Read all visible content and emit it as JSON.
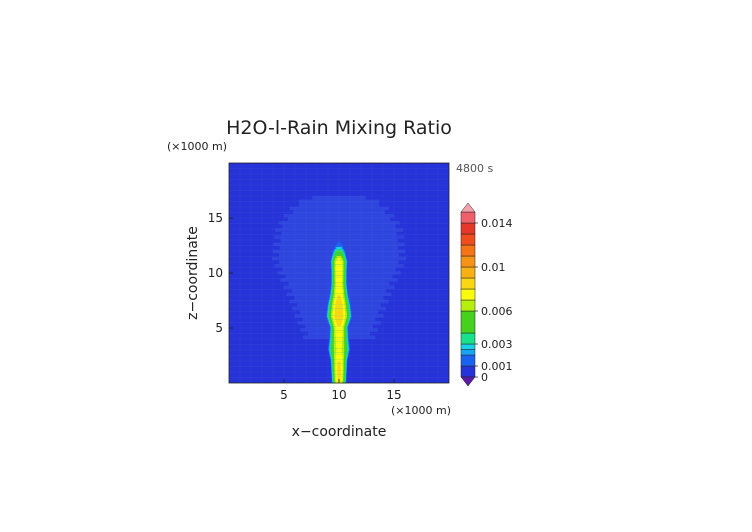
{
  "chart_data": {
    "type": "heatmap",
    "title": "H2O-l-Rain Mixing Ratio",
    "time_label": "4800 s",
    "xlabel": "x−coordinate",
    "ylabel": "z−coordinate",
    "x_unit": "(×1000 m)",
    "y_unit": "(×1000 m)",
    "xlim": [
      0,
      20
    ],
    "ylim": [
      0,
      20
    ],
    "x_ticks": [
      {
        "value": 5,
        "label": "5"
      },
      {
        "value": 10,
        "label": "10"
      },
      {
        "value": 15,
        "label": "15"
      }
    ],
    "y_ticks": [
      {
        "value": 5,
        "label": "5"
      },
      {
        "value": 10,
        "label": "10"
      },
      {
        "value": 15,
        "label": "15"
      }
    ],
    "colorbar": {
      "vmin": 0,
      "vmax": 0.015,
      "ticks": [
        {
          "value": 0,
          "label": "0"
        },
        {
          "value": 0.001,
          "label": "0.001"
        },
        {
          "value": 0.003,
          "label": "0.003"
        },
        {
          "value": 0.006,
          "label": "0.006"
        },
        {
          "value": 0.01,
          "label": "0.01"
        },
        {
          "value": 0.014,
          "label": "0.014"
        }
      ],
      "levels": [
        {
          "lo": 0.0,
          "hi": 0.001,
          "color": "#2533d8"
        },
        {
          "lo": 0.001,
          "hi": 0.002,
          "color": "#1a63f0"
        },
        {
          "lo": 0.002,
          "hi": 0.0025,
          "color": "#1aa4f5"
        },
        {
          "lo": 0.0025,
          "hi": 0.003,
          "color": "#19d2e6"
        },
        {
          "lo": 0.003,
          "hi": 0.004,
          "color": "#19e08a"
        },
        {
          "lo": 0.004,
          "hi": 0.006,
          "color": "#44d21c"
        },
        {
          "lo": 0.006,
          "hi": 0.007,
          "color": "#b6ef0e"
        },
        {
          "lo": 0.007,
          "hi": 0.008,
          "color": "#fbfb10"
        },
        {
          "lo": 0.008,
          "hi": 0.009,
          "color": "#fbd612"
        },
        {
          "lo": 0.009,
          "hi": 0.01,
          "color": "#f8b114"
        },
        {
          "lo": 0.01,
          "hi": 0.011,
          "color": "#f69316"
        },
        {
          "lo": 0.011,
          "hi": 0.012,
          "color": "#f57418"
        },
        {
          "lo": 0.012,
          "hi": 0.013,
          "color": "#f04c1c"
        },
        {
          "lo": 0.013,
          "hi": 0.014,
          "color": "#e5372a"
        },
        {
          "lo": 0.014,
          "hi": 0.015,
          "color": "#f0606a"
        }
      ],
      "under_color": "#5a1ca8",
      "over_color": "#f3a3a9"
    },
    "background_color": "#2533d8",
    "anvil_color": "#3a5ae6",
    "core_profile": [
      {
        "z": 0.0,
        "halfwidth": 0.55,
        "peak": 0.008
      },
      {
        "z": 1.0,
        "halfwidth": 0.6,
        "peak": 0.0082
      },
      {
        "z": 2.0,
        "halfwidth": 0.65,
        "peak": 0.008
      },
      {
        "z": 3.0,
        "halfwidth": 0.85,
        "peak": 0.0072
      },
      {
        "z": 4.0,
        "halfwidth": 0.75,
        "peak": 0.0076
      },
      {
        "z": 5.0,
        "halfwidth": 0.7,
        "peak": 0.008
      },
      {
        "z": 6.0,
        "halfwidth": 1.0,
        "peak": 0.0088
      },
      {
        "z": 7.0,
        "halfwidth": 0.9,
        "peak": 0.0086
      },
      {
        "z": 8.0,
        "halfwidth": 0.7,
        "peak": 0.008
      },
      {
        "z": 9.0,
        "halfwidth": 0.6,
        "peak": 0.0078
      },
      {
        "z": 10.0,
        "halfwidth": 0.6,
        "peak": 0.008
      },
      {
        "z": 11.0,
        "halfwidth": 0.65,
        "peak": 0.0078
      },
      {
        "z": 11.8,
        "halfwidth": 0.5,
        "peak": 0.005
      },
      {
        "z": 12.4,
        "halfwidth": 0.3,
        "peak": 0.002
      },
      {
        "z": 12.8,
        "halfwidth": 0.1,
        "peak": 0.0008
      }
    ],
    "anvil_profile": [
      {
        "z": 4.0,
        "halfwidth": 3.0
      },
      {
        "z": 8.0,
        "halfwidth": 4.5
      },
      {
        "z": 11.0,
        "halfwidth": 5.8
      },
      {
        "z": 14.0,
        "halfwidth": 5.5
      },
      {
        "z": 16.0,
        "halfwidth": 4.0
      },
      {
        "z": 16.8,
        "halfwidth": 2.5
      }
    ]
  }
}
